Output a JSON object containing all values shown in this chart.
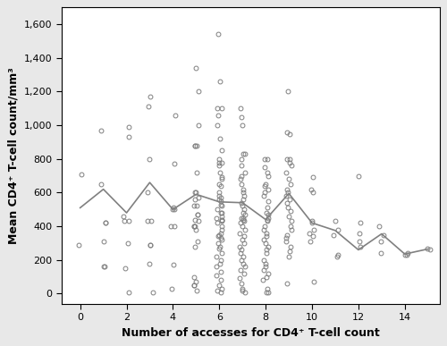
{
  "title": "",
  "xlabel": "Number of accesses for CD4⁺ T-cell count",
  "ylabel": "Mean CD4⁺ T-cell count/mm³",
  "xlim": [
    -0.8,
    15.5
  ],
  "ylim": [
    -60,
    1700
  ],
  "yticks": [
    0,
    200,
    400,
    600,
    800,
    1000,
    1200,
    1400,
    1600
  ],
  "xticks": [
    0,
    2,
    4,
    6,
    8,
    10,
    12,
    14
  ],
  "mean_x": [
    0,
    1,
    2,
    3,
    4,
    5,
    6,
    7,
    8,
    9,
    10,
    11,
    12,
    13,
    14,
    15
  ],
  "mean_y": [
    510,
    620,
    480,
    660,
    500,
    590,
    545,
    540,
    440,
    595,
    420,
    375,
    260,
    355,
    235,
    265
  ],
  "scatter": {
    "0": [
      710,
      290
    ],
    "1": [
      970,
      650,
      420,
      420,
      310,
      160,
      160
    ],
    "2": [
      990,
      930,
      460,
      430,
      430,
      300,
      150,
      10
    ],
    "3": [
      1170,
      1110,
      800,
      600,
      430,
      430,
      290,
      290,
      180,
      10
    ],
    "4": [
      1060,
      770,
      510,
      500,
      500,
      400,
      400,
      170,
      30
    ],
    "5": [
      1340,
      1200,
      1000,
      880,
      880,
      880,
      720,
      600,
      600,
      570,
      560,
      520,
      520,
      470,
      470,
      440,
      430,
      400,
      400,
      400,
      380,
      310,
      280,
      100,
      70,
      50,
      50,
      20
    ],
    "6": [
      1540,
      1260,
      1100,
      1100,
      1060,
      1000,
      920,
      850,
      800,
      780,
      780,
      760,
      720,
      690,
      680,
      650,
      640,
      600,
      580,
      570,
      560,
      550,
      530,
      520,
      500,
      480,
      480,
      460,
      450,
      440,
      440,
      430,
      420,
      400,
      380,
      360,
      350,
      340,
      330,
      320,
      300,
      280,
      270,
      240,
      220,
      200,
      180,
      160,
      130,
      110,
      80,
      50,
      30,
      20,
      10
    ],
    "7": [
      1100,
      1050,
      1000,
      830,
      830,
      800,
      760,
      720,
      700,
      680,
      650,
      620,
      600,
      580,
      560,
      540,
      520,
      500,
      480,
      470,
      450,
      450,
      440,
      430,
      420,
      400,
      380,
      360,
      340,
      320,
      300,
      280,
      260,
      240,
      220,
      200,
      180,
      160,
      140,
      120,
      90,
      60,
      30,
      20,
      10
    ],
    "8": [
      800,
      800,
      750,
      720,
      700,
      650,
      640,
      620,
      600,
      580,
      550,
      510,
      480,
      470,
      450,
      440,
      430,
      400,
      380,
      360,
      340,
      320,
      300,
      280,
      260,
      240,
      200,
      180,
      160,
      140,
      120,
      100,
      80,
      30,
      10,
      10
    ],
    "9": [
      1200,
      960,
      950,
      800,
      800,
      780,
      760,
      720,
      680,
      650,
      620,
      600,
      580,
      560,
      540,
      510,
      490,
      460,
      430,
      400,
      380,
      350,
      330,
      310,
      280,
      250,
      220,
      60
    ],
    "10": [
      690,
      620,
      600,
      430,
      420,
      380,
      360,
      340,
      310,
      70
    ],
    "11": [
      430,
      380,
      350,
      230,
      220
    ],
    "12": [
      700,
      420,
      360,
      310,
      280
    ],
    "13": [
      400,
      350,
      310,
      240
    ],
    "14": [
      240,
      230,
      230
    ],
    "15": [
      270,
      265
    ]
  },
  "line_color": "#808080",
  "scatter_color": "#808080",
  "outer_bg": "#e8e8e8",
  "inner_bg": "#ffffff"
}
